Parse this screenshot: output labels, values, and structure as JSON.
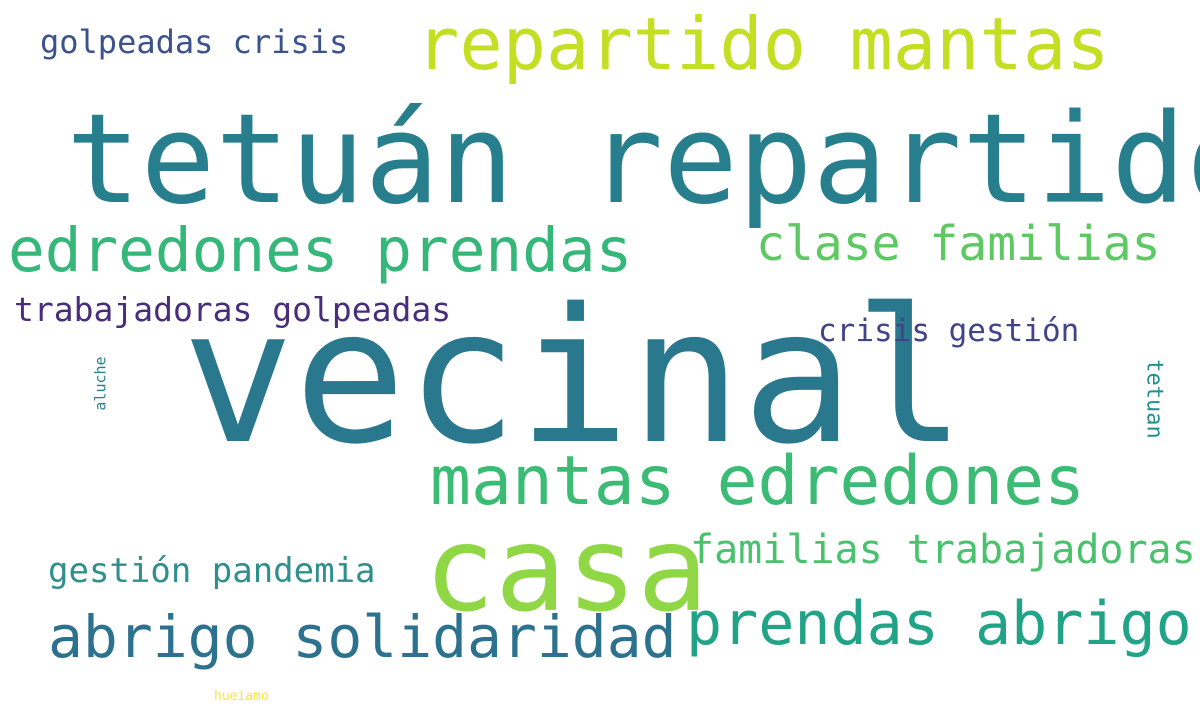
{
  "words": [
    {
      "text": "tetuán repartido",
      "color": "#277f8e"
    },
    {
      "text": "vecinal",
      "color": "#2a788e"
    },
    {
      "text": "casa",
      "color": "#8fd744"
    },
    {
      "text": "repartido mantas",
      "color": "#c2df23"
    },
    {
      "text": "edredones prendas",
      "color": "#35b779"
    },
    {
      "text": "clase familias",
      "color": "#5ec962"
    },
    {
      "text": "mantas edredones",
      "color": "#3cbb75"
    },
    {
      "text": "prendas abrigo",
      "color": "#20a386"
    },
    {
      "text": "abrigo solidaridad",
      "color": "#2c728e"
    },
    {
      "text": "familias trabajadoras",
      "color": "#4ac16d"
    },
    {
      "text": "gestión pandemia",
      "color": "#2f8f8c"
    },
    {
      "text": "golpeadas crisis",
      "color": "#3b528b"
    },
    {
      "text": "trabajadoras golpeadas",
      "color": "#472d7b"
    },
    {
      "text": "crisis gestión",
      "color": "#414487"
    },
    {
      "text": "aluche",
      "color": "#26828e"
    },
    {
      "text": "tetuan",
      "color": "#21918c"
    },
    {
      "text": "hueiamo",
      "color": "#fde725"
    }
  ]
}
